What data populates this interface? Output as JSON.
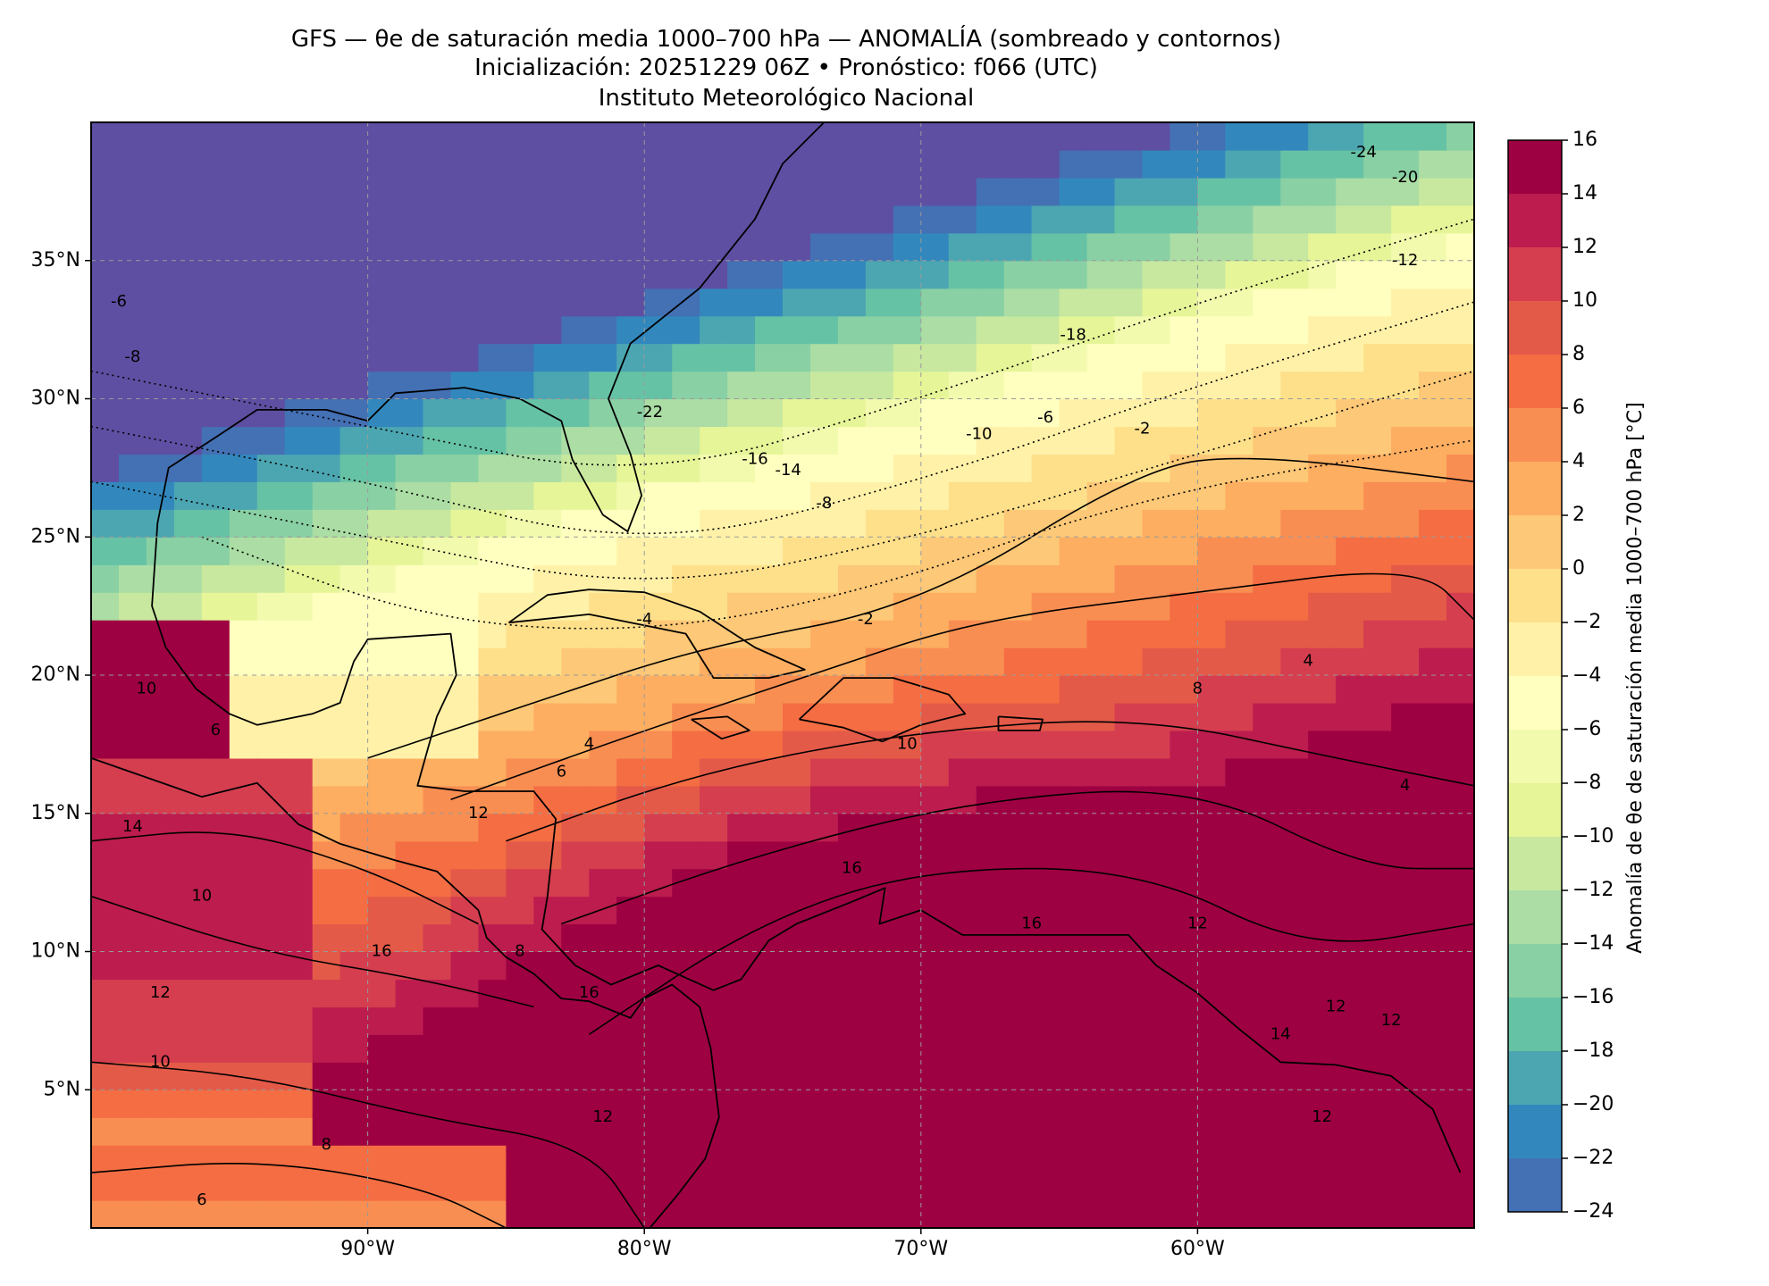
{
  "titles": {
    "line1": "GFS — θe de saturación media 1000–700 hPa — ANOMALÍA (sombreado y contornos)",
    "line2": "Inicialización: 20251229 06Z   •   Pronóstico: f066 (UTC)",
    "line3": "Instituto Meteorológico Nacional"
  },
  "axes": {
    "lat_ticks": [
      {
        "label": "35°N",
        "value": 35
      },
      {
        "label": "30°N",
        "value": 30
      },
      {
        "label": "25°N",
        "value": 25
      },
      {
        "label": "20°N",
        "value": 20
      },
      {
        "label": "15°N",
        "value": 15
      },
      {
        "label": "10°N",
        "value": 10
      },
      {
        "label": "5°N",
        "value": 5
      }
    ],
    "lon_ticks": [
      {
        "label": "90°W",
        "value": -90
      },
      {
        "label": "80°W",
        "value": -80
      },
      {
        "label": "70°W",
        "value": -70
      },
      {
        "label": "60°W",
        "value": -60
      }
    ],
    "lon_range": [
      -100,
      -50
    ],
    "lat_range": [
      0,
      40
    ],
    "grid": true
  },
  "colorbar": {
    "label": "Anomalía de θe de saturación media 1000–700 hPa [°C]",
    "ticks": [
      "16",
      "14",
      "12",
      "10",
      "8",
      "6",
      "4",
      "2",
      "0",
      "−2",
      "−4",
      "−6",
      "−8",
      "−10",
      "−12",
      "−14",
      "−16",
      "−18",
      "−20",
      "−22",
      "−24"
    ],
    "colors": [
      "#9e0142",
      "#bc1c4e",
      "#d53e4f",
      "#e45a48",
      "#f46d43",
      "#f98e52",
      "#fdae61",
      "#fdc877",
      "#fee08b",
      "#fff1a8",
      "#ffffbf",
      "#f2faae",
      "#e6f598",
      "#c7e89e",
      "#abdda4",
      "#89d0a4",
      "#66c2a5",
      "#4ca6b1",
      "#3288bd",
      "#4470b4",
      "#5e4fa2"
    ],
    "range": [
      -24,
      16
    ]
  },
  "contour_labels": [
    {
      "text": "-24",
      "lon": -54.0,
      "lat": 38.9
    },
    {
      "text": "-20",
      "lon": -52.5,
      "lat": 38.0
    },
    {
      "text": "-12",
      "lon": -52.5,
      "lat": 35.0
    },
    {
      "text": "-18",
      "lon": -64.5,
      "lat": 32.3
    },
    {
      "text": "-22",
      "lon": -79.8,
      "lat": 29.5
    },
    {
      "text": "-16",
      "lon": -76.0,
      "lat": 27.8
    },
    {
      "text": "-14",
      "lon": -74.8,
      "lat": 27.4
    },
    {
      "text": "-10",
      "lon": -67.9,
      "lat": 28.7
    },
    {
      "text": "-6",
      "lon": -65.5,
      "lat": 29.3
    },
    {
      "text": "-2",
      "lon": -62.0,
      "lat": 28.9
    },
    {
      "text": "-8",
      "lon": -73.5,
      "lat": 26.2
    },
    {
      "text": "-6",
      "lon": -99.0,
      "lat": 33.5
    },
    {
      "text": "-8",
      "lon": -98.5,
      "lat": 31.5
    },
    {
      "text": "-4",
      "lon": -80.0,
      "lat": 22.0
    },
    {
      "text": "-2",
      "lon": -72.0,
      "lat": 22.0
    },
    {
      "text": "4",
      "lon": -56.0,
      "lat": 20.5
    },
    {
      "text": "4",
      "lon": -52.5,
      "lat": 16.0
    },
    {
      "text": "8",
      "lon": -60.0,
      "lat": 19.5
    },
    {
      "text": "10",
      "lon": -70.5,
      "lat": 17.5
    },
    {
      "text": "4",
      "lon": -82.0,
      "lat": 17.5
    },
    {
      "text": "6",
      "lon": -83.0,
      "lat": 16.5
    },
    {
      "text": "12",
      "lon": -86.0,
      "lat": 15.0
    },
    {
      "text": "16",
      "lon": -72.5,
      "lat": 13.0
    },
    {
      "text": "16",
      "lon": -66.0,
      "lat": 11.0
    },
    {
      "text": "12",
      "lon": -60.0,
      "lat": 11.0
    },
    {
      "text": "16",
      "lon": -82.0,
      "lat": 8.5
    },
    {
      "text": "16",
      "lon": -89.5,
      "lat": 10.0
    },
    {
      "text": "8",
      "lon": -84.5,
      "lat": 10.0
    },
    {
      "text": "14",
      "lon": -98.5,
      "lat": 14.5
    },
    {
      "text": "10",
      "lon": -96.0,
      "lat": 12.0
    },
    {
      "text": "12",
      "lon": -97.5,
      "lat": 8.5
    },
    {
      "text": "10",
      "lon": -97.5,
      "lat": 6.0
    },
    {
      "text": "12",
      "lon": -81.5,
      "lat": 4.0
    },
    {
      "text": "8",
      "lon": -91.5,
      "lat": 3.0
    },
    {
      "text": "6",
      "lon": -96.0,
      "lat": 1.0
    },
    {
      "text": "12",
      "lon": -55.0,
      "lat": 8.0
    },
    {
      "text": "14",
      "lon": -57.0,
      "lat": 7.0
    },
    {
      "text": "12",
      "lon": -53.0,
      "lat": 7.5
    },
    {
      "text": "12",
      "lon": -55.5,
      "lat": 4.0
    },
    {
      "text": "10",
      "lon": -98.0,
      "lat": 19.5
    },
    {
      "text": "6",
      "lon": -95.5,
      "lat": 18.0
    }
  ]
}
